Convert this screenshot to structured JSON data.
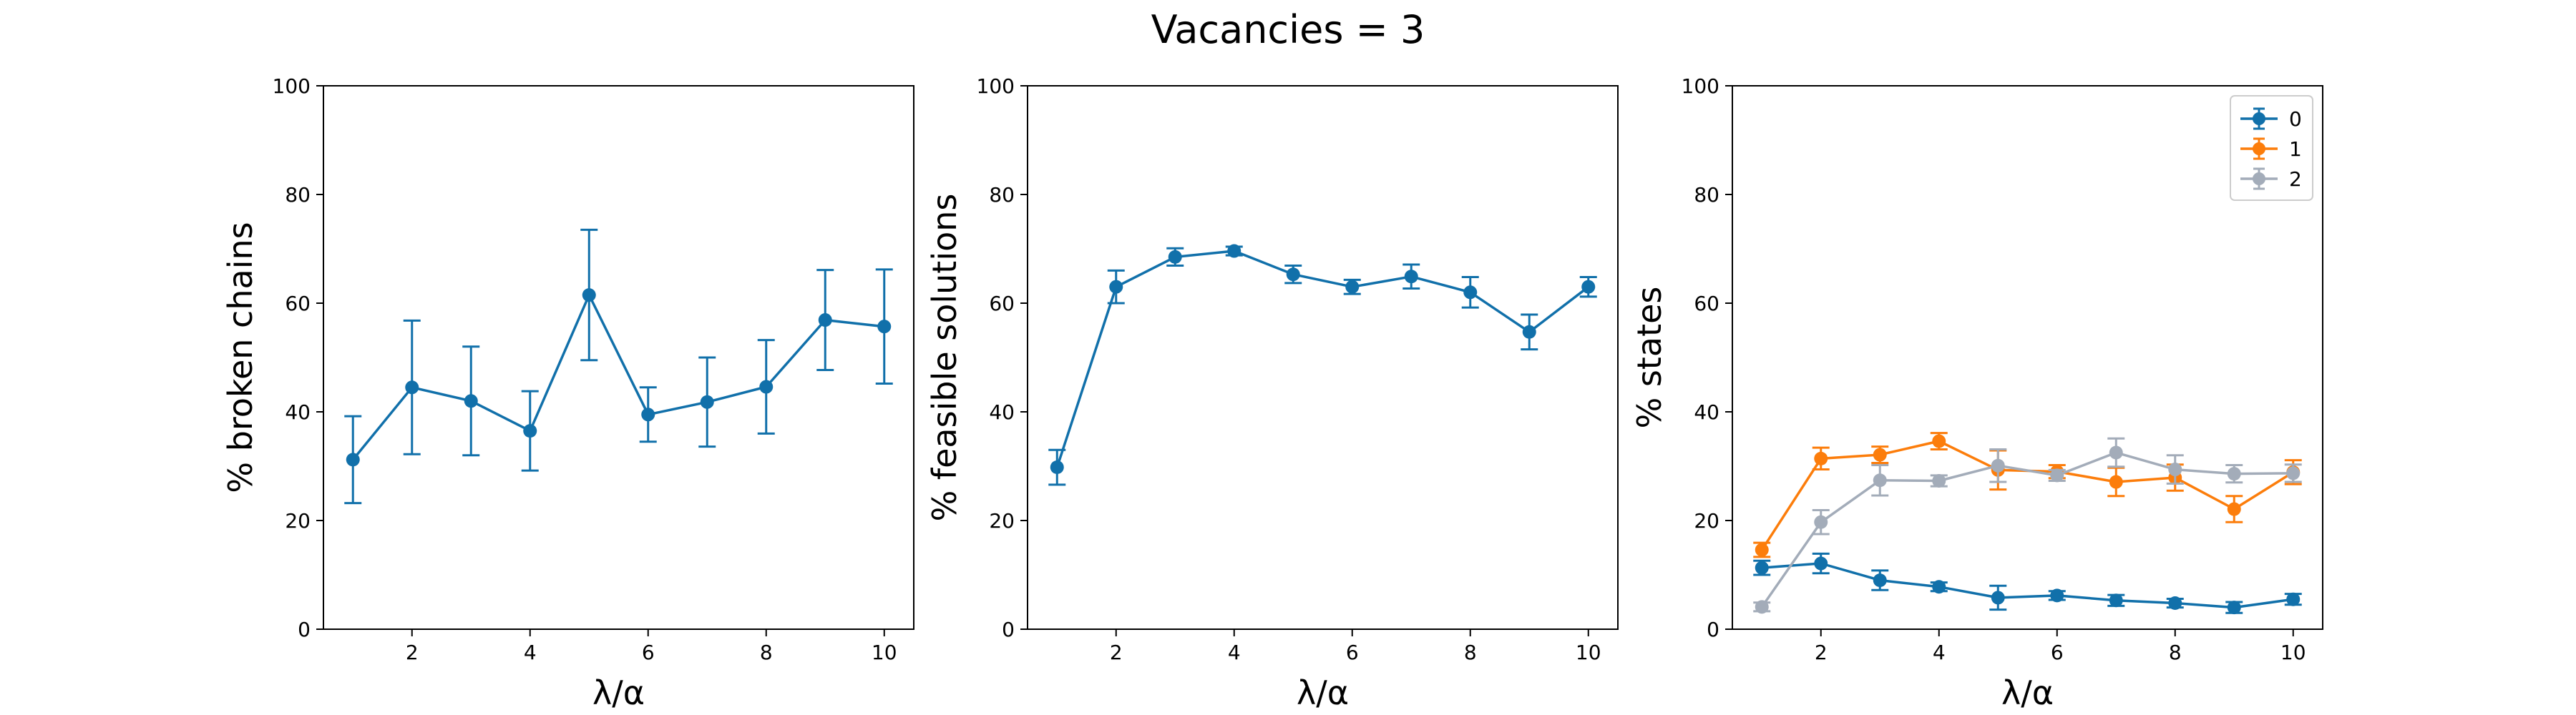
{
  "figure": {
    "suptitle": "Vacancies = 3"
  },
  "colors": {
    "series_0": "#1170aa",
    "series_1": "#fc7d0b",
    "series_2": "#a3acb9",
    "axes": "#000000",
    "background": "#ffffff"
  },
  "chart_data": [
    {
      "type": "line",
      "xlabel": "λ/α",
      "ylabel": "% broken chains",
      "xlim": [
        0.5,
        10.5
      ],
      "ylim": [
        0,
        100
      ],
      "xticks": [
        2,
        4,
        6,
        8,
        10
      ],
      "yticks": [
        0,
        20,
        40,
        60,
        80,
        100
      ],
      "error_bars": true,
      "grid": false,
      "x": [
        1,
        2,
        3,
        4,
        5,
        6,
        7,
        8,
        9,
        10
      ],
      "series": [
        {
          "color": "#1170aa",
          "values": [
            31.2,
            44.5,
            42.0,
            36.5,
            61.5,
            39.5,
            41.8,
            44.6,
            56.9,
            55.7
          ],
          "errors": [
            8.0,
            12.3,
            10.0,
            7.3,
            12.0,
            5.0,
            8.2,
            8.6,
            9.2,
            10.5
          ]
        }
      ]
    },
    {
      "type": "line",
      "xlabel": "λ/α",
      "ylabel": "% feasible solutions",
      "xlim": [
        0.5,
        10.5
      ],
      "ylim": [
        0,
        100
      ],
      "xticks": [
        2,
        4,
        6,
        8,
        10
      ],
      "yticks": [
        0,
        20,
        40,
        60,
        80,
        100
      ],
      "error_bars": true,
      "grid": false,
      "x": [
        1,
        2,
        3,
        4,
        5,
        6,
        7,
        8,
        9,
        10
      ],
      "series": [
        {
          "color": "#1170aa",
          "values": [
            29.8,
            63.0,
            68.5,
            69.6,
            65.3,
            63.0,
            64.9,
            62.0,
            54.7,
            63.0
          ],
          "errors": [
            3.2,
            3.0,
            1.6,
            0.8,
            1.6,
            1.3,
            2.2,
            2.8,
            3.2,
            1.8
          ]
        }
      ]
    },
    {
      "type": "line",
      "xlabel": "λ/α",
      "ylabel": "% states",
      "xlim": [
        0.5,
        10.5
      ],
      "ylim": [
        0,
        100
      ],
      "xticks": [
        2,
        4,
        6,
        8,
        10
      ],
      "yticks": [
        0,
        20,
        40,
        60,
        80,
        100
      ],
      "error_bars": true,
      "grid": false,
      "legend_position": "top-right",
      "x": [
        1,
        2,
        3,
        4,
        5,
        6,
        7,
        8,
        9,
        10
      ],
      "series": [
        {
          "name": "0",
          "color": "#1170aa",
          "values": [
            11.3,
            12.1,
            9.0,
            7.8,
            5.8,
            6.2,
            5.3,
            4.8,
            4.0,
            5.5
          ],
          "errors": [
            1.3,
            1.8,
            1.8,
            0.8,
            2.2,
            0.8,
            1.0,
            0.8,
            1.0,
            1.0
          ]
        },
        {
          "name": "1",
          "color": "#fc7d0b",
          "values": [
            14.6,
            31.4,
            32.1,
            34.6,
            29.3,
            29.0,
            27.1,
            27.9,
            22.1,
            28.9
          ],
          "errors": [
            1.3,
            2.0,
            1.5,
            1.5,
            3.6,
            1.2,
            2.6,
            2.4,
            2.4,
            2.2
          ]
        },
        {
          "name": "2",
          "color": "#a3acb9",
          "values": [
            4.1,
            19.7,
            27.4,
            27.3,
            30.1,
            28.3,
            32.5,
            29.4,
            28.6,
            28.7
          ],
          "errors": [
            0.8,
            2.2,
            2.8,
            1.0,
            3.0,
            1.0,
            2.6,
            2.6,
            1.6,
            1.6
          ]
        }
      ]
    }
  ]
}
